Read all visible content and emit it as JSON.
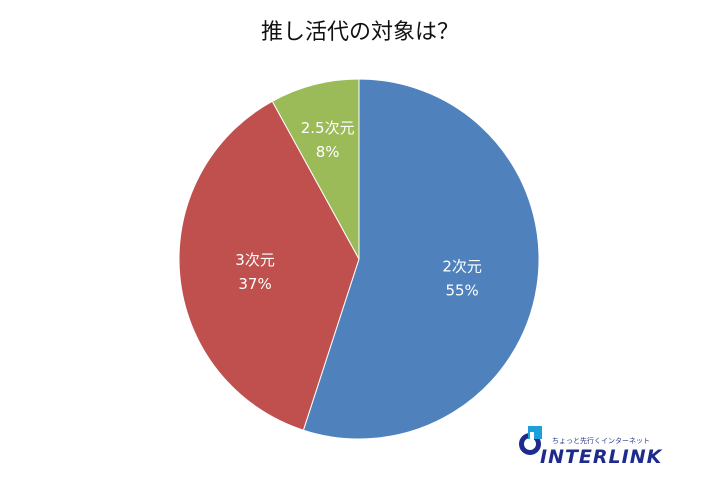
{
  "chart_data": {
    "type": "pie",
    "title": "推し活代の対象は？",
    "slices": [
      {
        "label": "2次元",
        "value": 55,
        "value_label": "55%",
        "color": "#4f81bd"
      },
      {
        "label": "3次元",
        "value": 37,
        "value_label": "37%",
        "color": "#c0504d"
      },
      {
        "label": "2.5次元",
        "value": 8,
        "value_label": "8%",
        "color": "#9bbb59"
      }
    ],
    "start_angle": "12 o'clock",
    "direction": "clockwise",
    "legend": "none"
  },
  "logo": {
    "tagline": "ちょっと先行くインターネット",
    "wordmark": "INTERLINK",
    "color": "#1e2b8c",
    "accent": "#1aa0dc"
  }
}
